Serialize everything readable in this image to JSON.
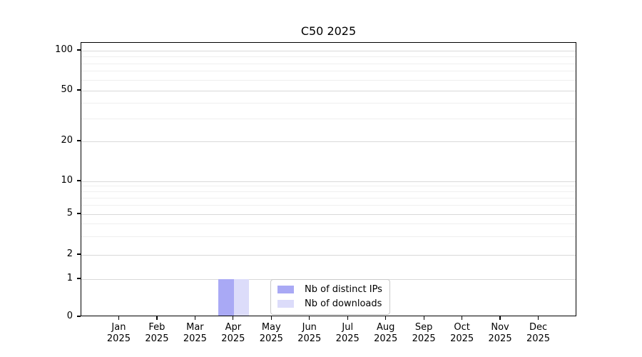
{
  "chart_data": {
    "type": "bar",
    "title": "C50 2025",
    "categories": [
      "Jan",
      "Feb",
      "Mar",
      "Apr",
      "May",
      "Jun",
      "Jul",
      "Aug",
      "Sep",
      "Oct",
      "Nov",
      "Dec"
    ],
    "x_year": "2025",
    "series": [
      {
        "name": "Nb of distinct IPs",
        "color": "#a9a9f5",
        "values": [
          0,
          0,
          0,
          1,
          0,
          0,
          0,
          0,
          0,
          0,
          0,
          0
        ]
      },
      {
        "name": "Nb of downloads",
        "color": "#dcdcfa",
        "values": [
          0,
          0,
          0,
          1,
          0,
          0,
          0,
          0,
          0,
          0,
          0,
          0
        ]
      }
    ],
    "y_axis": {
      "tick_labels": [
        "0",
        "1",
        "2",
        "5",
        "10",
        "20",
        "50",
        "100"
      ],
      "tick_values": [
        0,
        1,
        2,
        5,
        10,
        20,
        50,
        100
      ],
      "minor_gridline_values": [
        3,
        4,
        6,
        7,
        8,
        9,
        30,
        40,
        60,
        70,
        80,
        90
      ],
      "scale": "log-above-1-linear-below",
      "range": [
        0,
        115
      ]
    },
    "legend": {
      "position": "bottom-center",
      "entries": [
        "Nb of distinct IPs",
        "Nb of downloads"
      ]
    },
    "grid": "horizontal",
    "colors": {
      "axis": "#000000",
      "grid_major": "#d9d9d9",
      "grid_minor": "#efefef",
      "background": "#ffffff"
    }
  }
}
